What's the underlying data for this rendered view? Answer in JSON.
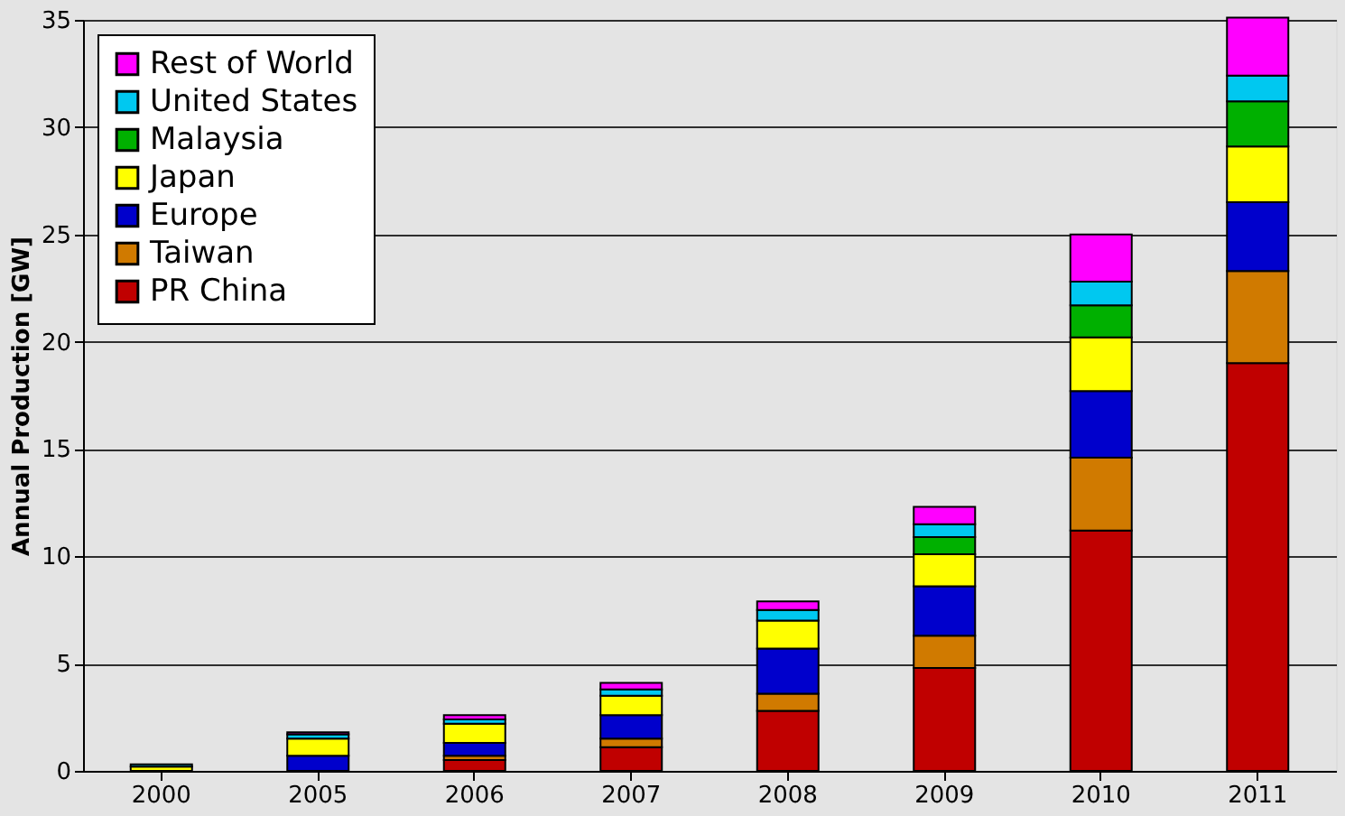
{
  "chart_data": {
    "type": "bar",
    "stacked": true,
    "ylabel": "Annual Production [GW]",
    "categories": [
      "2000",
      "2005",
      "2006",
      "2007",
      "2008",
      "2009",
      "2010",
      "2011"
    ],
    "series": [
      {
        "name": "PR China",
        "color": "#c00000",
        "values": [
          0,
          null,
          0.5,
          1.1,
          2.8,
          4.8,
          11.2,
          19.0
        ]
      },
      {
        "name": "Taiwan",
        "color": "#d07a00",
        "values": [
          0,
          null,
          0.2,
          0.4,
          0.8,
          1.5,
          3.4,
          4.3
        ]
      },
      {
        "name": "Europe",
        "color": "#0000cc",
        "values": [
          null,
          0.7,
          0.6,
          1.1,
          2.1,
          2.3,
          3.1,
          3.2
        ]
      },
      {
        "name": "Japan",
        "color": "#ffff00",
        "values": [
          0.2,
          0.8,
          0.9,
          0.9,
          1.3,
          1.5,
          2.5,
          2.6
        ]
      },
      {
        "name": "Malaysia",
        "color": "#00b000",
        "values": [
          0,
          0,
          0,
          0,
          0,
          0.8,
          1.5,
          2.1
        ]
      },
      {
        "name": "United States",
        "color": "#00c8f0",
        "values": [
          0.1,
          0.2,
          0.2,
          0.3,
          0.5,
          0.6,
          1.1,
          1.2
        ]
      },
      {
        "name": "Rest of World",
        "color": "#ff00ff",
        "values": [
          0,
          0.1,
          0.2,
          0.3,
          0.4,
          0.8,
          2.2,
          2.7
        ]
      }
    ],
    "ylim": [
      0,
      35
    ],
    "yticks": [
      0,
      5,
      10,
      15,
      20,
      25,
      30,
      35
    ],
    "grid": "y",
    "legend": "top left"
  }
}
